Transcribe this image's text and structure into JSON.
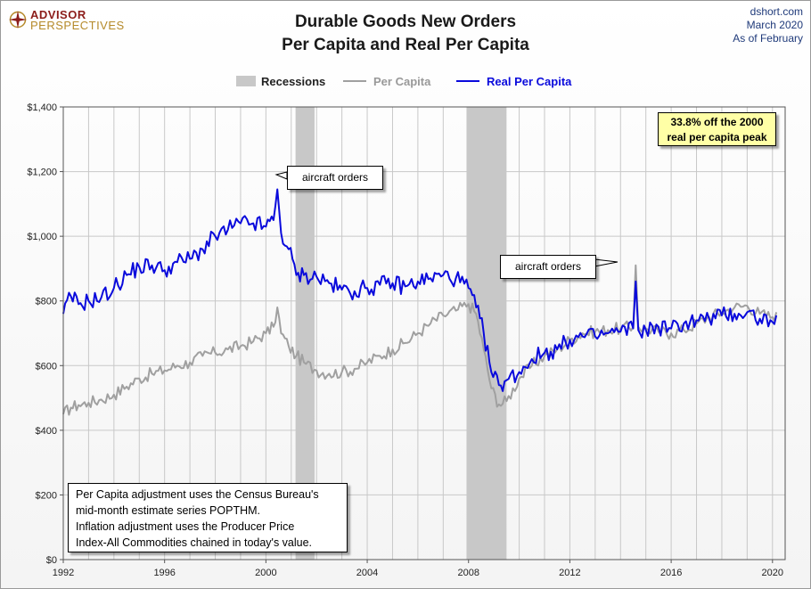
{
  "logo": {
    "line1": "ADVISOR",
    "line2": "PERSPECTIVES"
  },
  "header": {
    "title_line1": "Durable Goods New Orders",
    "title_line2": "Per Capita and Real Per Capita",
    "source_lines": [
      "dshort.com",
      "March 2020",
      "As of February"
    ]
  },
  "notes": {
    "peak_line1": "33.8% off the 2000",
    "peak_line2": "real per capita peak",
    "info_lines": [
      "Per Capita adjustment uses the Census Bureau's",
      "mid-month estimate series POPTHM.",
      "Inflation adjustment uses the Producer Price",
      "Index-All Commodities chained in today's value."
    ],
    "annotation_1": "aircraft orders",
    "annotation_2": "aircraft orders"
  },
  "colors": {
    "recession": "#c8c8c8",
    "per_capita": "#a0a0a0",
    "real_per_capita": "#0a0adc",
    "grid": "#c8c8c8"
  },
  "chart_data": {
    "type": "line",
    "title": "Durable Goods New Orders Per Capita and Real Per Capita",
    "x_range": [
      1992,
      2020.5
    ],
    "ylim": [
      0,
      1400
    ],
    "y_ticks": [
      0,
      200,
      400,
      600,
      800,
      1000,
      1200,
      1400
    ],
    "y_tick_labels": [
      "$0",
      "$200",
      "$400",
      "$600",
      "$800",
      "$1,000",
      "$1,200",
      "$1,400"
    ],
    "x_ticks": [
      1992,
      1996,
      2000,
      2004,
      2008,
      2012,
      2016,
      2020
    ],
    "x_tick_labels": [
      "1992",
      "1996",
      "2000",
      "2004",
      "2008",
      "2012",
      "2016",
      "2020"
    ],
    "grid": true,
    "legend_placement": "top-center",
    "recessions": {
      "name": "Recessions",
      "periods": [
        [
          2001.17,
          2001.92
        ],
        [
          2007.92,
          2009.5
        ]
      ]
    },
    "series": [
      {
        "name": "Per Capita",
        "points": [
          [
            1992.0,
            450
          ],
          [
            1992.3,
            470
          ],
          [
            1992.6,
            478
          ],
          [
            1993.0,
            485
          ],
          [
            1993.5,
            495
          ],
          [
            1994.0,
            510
          ],
          [
            1994.5,
            535
          ],
          [
            1995.0,
            560
          ],
          [
            1995.5,
            575
          ],
          [
            1996.0,
            585
          ],
          [
            1996.5,
            600
          ],
          [
            1997.0,
            610
          ],
          [
            1997.5,
            630
          ],
          [
            1998.0,
            640
          ],
          [
            1998.5,
            650
          ],
          [
            1999.0,
            660
          ],
          [
            1999.5,
            675
          ],
          [
            2000.0,
            700
          ],
          [
            2000.3,
            720
          ],
          [
            2000.45,
            780
          ],
          [
            2000.6,
            700
          ],
          [
            2000.9,
            660
          ],
          [
            2001.2,
            630
          ],
          [
            2001.5,
            610
          ],
          [
            2002.0,
            585
          ],
          [
            2002.5,
            575
          ],
          [
            2003.0,
            580
          ],
          [
            2003.5,
            590
          ],
          [
            2004.0,
            610
          ],
          [
            2004.5,
            630
          ],
          [
            2005.0,
            650
          ],
          [
            2005.5,
            670
          ],
          [
            2006.0,
            700
          ],
          [
            2006.5,
            730
          ],
          [
            2007.0,
            755
          ],
          [
            2007.5,
            770
          ],
          [
            2008.0,
            790
          ],
          [
            2008.3,
            760
          ],
          [
            2008.6,
            650
          ],
          [
            2008.9,
            530
          ],
          [
            2009.2,
            480
          ],
          [
            2009.5,
            490
          ],
          [
            2010.0,
            560
          ],
          [
            2010.5,
            600
          ],
          [
            2011.0,
            630
          ],
          [
            2011.5,
            650
          ],
          [
            2012.0,
            680
          ],
          [
            2012.5,
            700
          ],
          [
            2013.0,
            705
          ],
          [
            2013.5,
            710
          ],
          [
            2014.0,
            715
          ],
          [
            2014.5,
            720
          ],
          [
            2014.6,
            910
          ],
          [
            2014.7,
            720
          ],
          [
            2015.0,
            715
          ],
          [
            2015.5,
            705
          ],
          [
            2016.0,
            700
          ],
          [
            2016.5,
            710
          ],
          [
            2017.0,
            730
          ],
          [
            2017.5,
            750
          ],
          [
            2018.0,
            765
          ],
          [
            2018.5,
            780
          ],
          [
            2019.0,
            785
          ],
          [
            2019.5,
            760
          ],
          [
            2020.0,
            750
          ],
          [
            2020.15,
            765
          ]
        ]
      },
      {
        "name": "Real Per Capita",
        "points": [
          [
            1992.0,
            760
          ],
          [
            1992.3,
            815
          ],
          [
            1992.6,
            790
          ],
          [
            1993.0,
            800
          ],
          [
            1993.5,
            810
          ],
          [
            1994.0,
            840
          ],
          [
            1994.5,
            880
          ],
          [
            1995.0,
            905
          ],
          [
            1995.5,
            910
          ],
          [
            1996.0,
            895
          ],
          [
            1996.5,
            920
          ],
          [
            1997.0,
            930
          ],
          [
            1997.5,
            960
          ],
          [
            1998.0,
            1000
          ],
          [
            1998.5,
            1020
          ],
          [
            1999.0,
            1040
          ],
          [
            1999.5,
            1040
          ],
          [
            2000.0,
            1030
          ],
          [
            2000.3,
            1050
          ],
          [
            2000.45,
            1145
          ],
          [
            2000.6,
            1010
          ],
          [
            2000.9,
            960
          ],
          [
            2001.2,
            880
          ],
          [
            2001.5,
            880
          ],
          [
            2002.0,
            875
          ],
          [
            2002.5,
            855
          ],
          [
            2003.0,
            835
          ],
          [
            2003.5,
            830
          ],
          [
            2004.0,
            840
          ],
          [
            2004.5,
            850
          ],
          [
            2005.0,
            855
          ],
          [
            2005.5,
            845
          ],
          [
            2006.0,
            860
          ],
          [
            2006.5,
            870
          ],
          [
            2007.0,
            880
          ],
          [
            2007.5,
            870
          ],
          [
            2008.0,
            840
          ],
          [
            2008.3,
            780
          ],
          [
            2008.6,
            700
          ],
          [
            2008.9,
            580
          ],
          [
            2009.2,
            540
          ],
          [
            2009.5,
            555
          ],
          [
            2010.0,
            580
          ],
          [
            2010.5,
            620
          ],
          [
            2011.0,
            640
          ],
          [
            2011.5,
            650
          ],
          [
            2012.0,
            680
          ],
          [
            2012.5,
            690
          ],
          [
            2013.0,
            690
          ],
          [
            2013.5,
            700
          ],
          [
            2014.0,
            705
          ],
          [
            2014.5,
            715
          ],
          [
            2014.6,
            860
          ],
          [
            2014.7,
            710
          ],
          [
            2015.0,
            710
          ],
          [
            2015.5,
            720
          ],
          [
            2016.0,
            715
          ],
          [
            2016.5,
            730
          ],
          [
            2017.0,
            740
          ],
          [
            2017.5,
            745
          ],
          [
            2018.0,
            755
          ],
          [
            2018.5,
            760
          ],
          [
            2019.0,
            765
          ],
          [
            2019.5,
            745
          ],
          [
            2020.0,
            735
          ],
          [
            2020.15,
            755
          ]
        ]
      }
    ]
  }
}
